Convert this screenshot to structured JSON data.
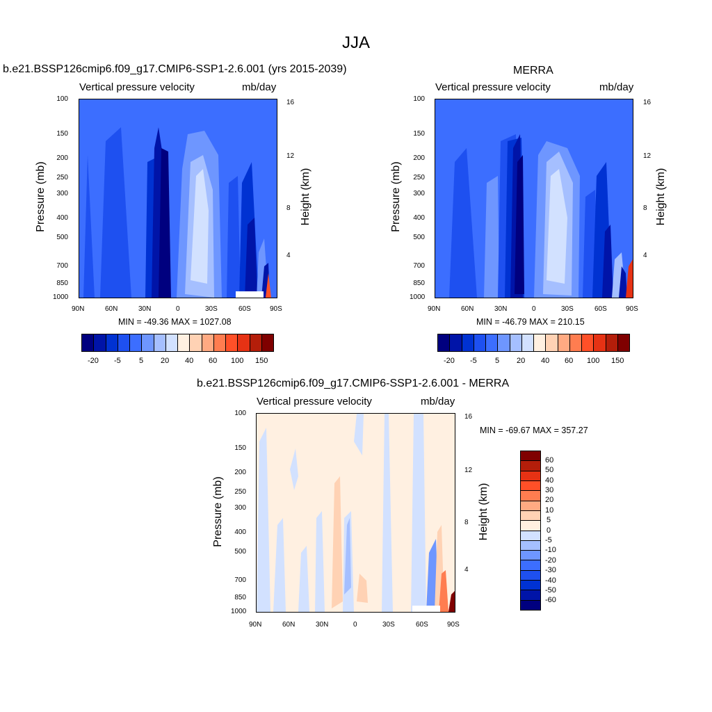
{
  "title": "JJA",
  "units_label": "mb/day",
  "variable_label": "Vertical pressure velocity",
  "pressure_axis_label": "Pressure (mb)",
  "height_axis_label": "Height (km)",
  "lat_ticks": [
    "90N",
    "60N",
    "30N",
    "0",
    "30S",
    "60S",
    "90S"
  ],
  "pressure_ticks": [
    "100",
    "150",
    "200",
    "250",
    "300",
    "400",
    "500",
    "700",
    "850",
    "1000"
  ],
  "height_ticks": [
    "16",
    "12",
    "8",
    "4"
  ],
  "colors": {
    "blues": [
      "#00007f",
      "#0014a8",
      "#0032d2",
      "#1e50f0",
      "#3c6eff",
      "#6e96ff",
      "#a5bfff",
      "#d2e1ff"
    ],
    "reds": [
      "#fff0e1",
      "#ffd2b4",
      "#ffaa82",
      "#ff7d50",
      "#ff5028",
      "#e63214",
      "#b41e0a",
      "#7f0000"
    ]
  },
  "chart_data": [
    {
      "type": "heatmap",
      "title": "b.e21.BSSP126cmip6.f09_g17.CMIP6-SSP1-2.6.001 (yrs 2015-2039)",
      "subtitle_left": "Vertical pressure velocity",
      "subtitle_right": "mb/day",
      "xlabel": "",
      "ylabel": "Pressure (mb)",
      "ylabel_right": "Height (km)",
      "min": -49.36,
      "max": 1027.08,
      "minmax_text": "MIN = -49.36  MAX = 1027.08",
      "colorbar_labels": [
        "-20",
        "-5",
        "5",
        "20",
        "40",
        "60",
        "100",
        "150"
      ]
    },
    {
      "type": "heatmap",
      "title": "MERRA",
      "subtitle_left": "Vertical pressure velocity",
      "subtitle_right": "mb/day",
      "xlabel": "",
      "ylabel": "Pressure (mb)",
      "ylabel_right": "Height (km)",
      "min": -46.79,
      "max": 210.15,
      "minmax_text": "MIN = -46.79  MAX = 210.15",
      "colorbar_labels": [
        "-20",
        "-5",
        "5",
        "20",
        "40",
        "60",
        "100",
        "150"
      ]
    },
    {
      "type": "heatmap",
      "title": "b.e21.BSSP126cmip6.f09_g17.CMIP6-SSP1-2.6.001 - MERRA",
      "subtitle_left": "Vertical pressure velocity",
      "subtitle_right": "mb/day",
      "xlabel": "",
      "ylabel": "Pressure (mb)",
      "ylabel_right": "Height (km)",
      "min": -69.67,
      "max": 357.27,
      "minmax_text": "MIN = -69.67  MAX = 357.27",
      "colorbar_labels": [
        "60",
        "50",
        "40",
        "30",
        "20",
        "10",
        "5",
        "0",
        "-5",
        "-10",
        "-20",
        "-30",
        "-40",
        "-50",
        "-60"
      ]
    }
  ]
}
